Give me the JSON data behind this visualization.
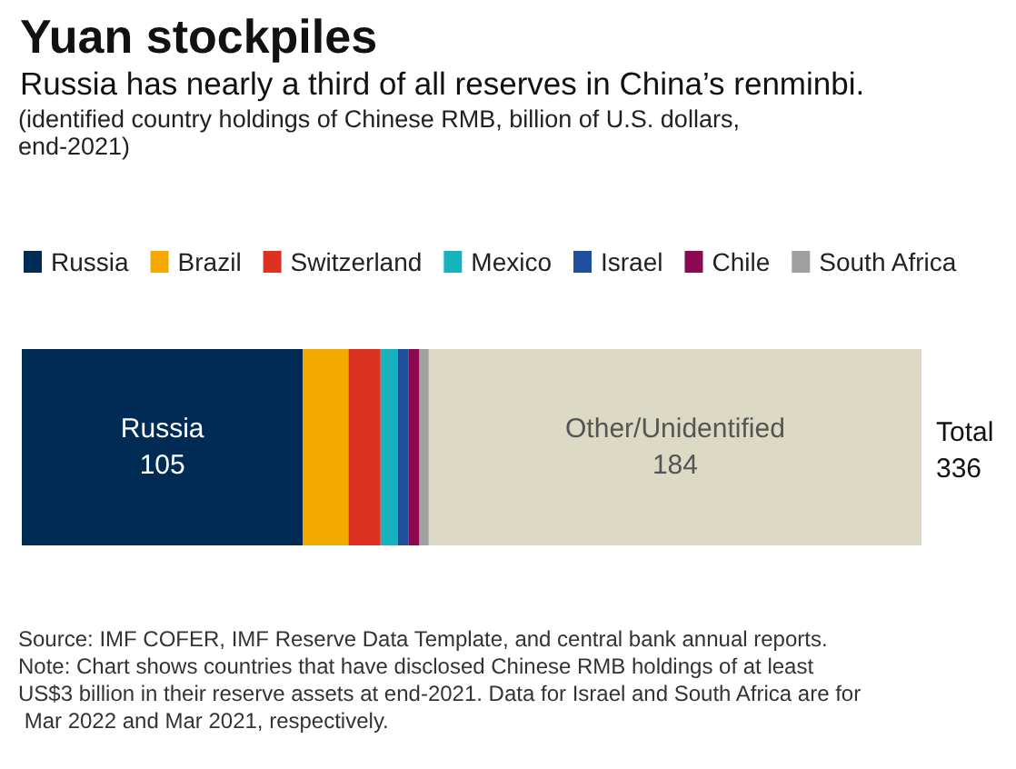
{
  "chart_data": {
    "type": "bar",
    "orientation": "horizontal",
    "stacked": true,
    "title": "Yuan stockpiles",
    "subtitle": "Russia has nearly a third of all reserves in China’s renminbi.",
    "annotations": [
      "(identified country holdings of Chinese RMB, billion of U.S. dollars, end-2021)",
      "Source: IMF COFER, IMF Reserve Data Template, and central bank annual reports.",
      "Note: Chart shows countries that have disclosed Chinese RMB holdings of at least US$3 billion in their reserve assets at end-2021. Data for Israel and South Africa are for Mar 2022 and Mar 2021, respectively."
    ],
    "categories": [
      null
    ],
    "series": [
      {
        "name": "Russia",
        "color": "#002b55",
        "values": [
          105
        ],
        "value_labels": [
          "105"
        ]
      },
      {
        "name": "Brazil",
        "color": "#f2a900",
        "values": [
          17
        ]
      },
      {
        "name": "Switzerland",
        "color": "#dd3222",
        "values": [
          12
        ]
      },
      {
        "name": "Mexico",
        "color": "#16b3bf",
        "values": [
          6.5
        ]
      },
      {
        "name": "Israel",
        "color": "#1d4f9c",
        "values": [
          4
        ]
      },
      {
        "name": "Chile",
        "color": "#8b0a4f",
        "values": [
          4
        ]
      },
      {
        "name": "South Africa",
        "color": "#a0a0a0",
        "values": [
          3.5
        ]
      },
      {
        "color": "#dcd9c5",
        "values": [
          184
        ],
        "value_labels": [
          "Other/Unidentified\n184"
        ]
      }
    ],
    "totals": [
      "Total\n336"
    ],
    "legend": "top left"
  }
}
